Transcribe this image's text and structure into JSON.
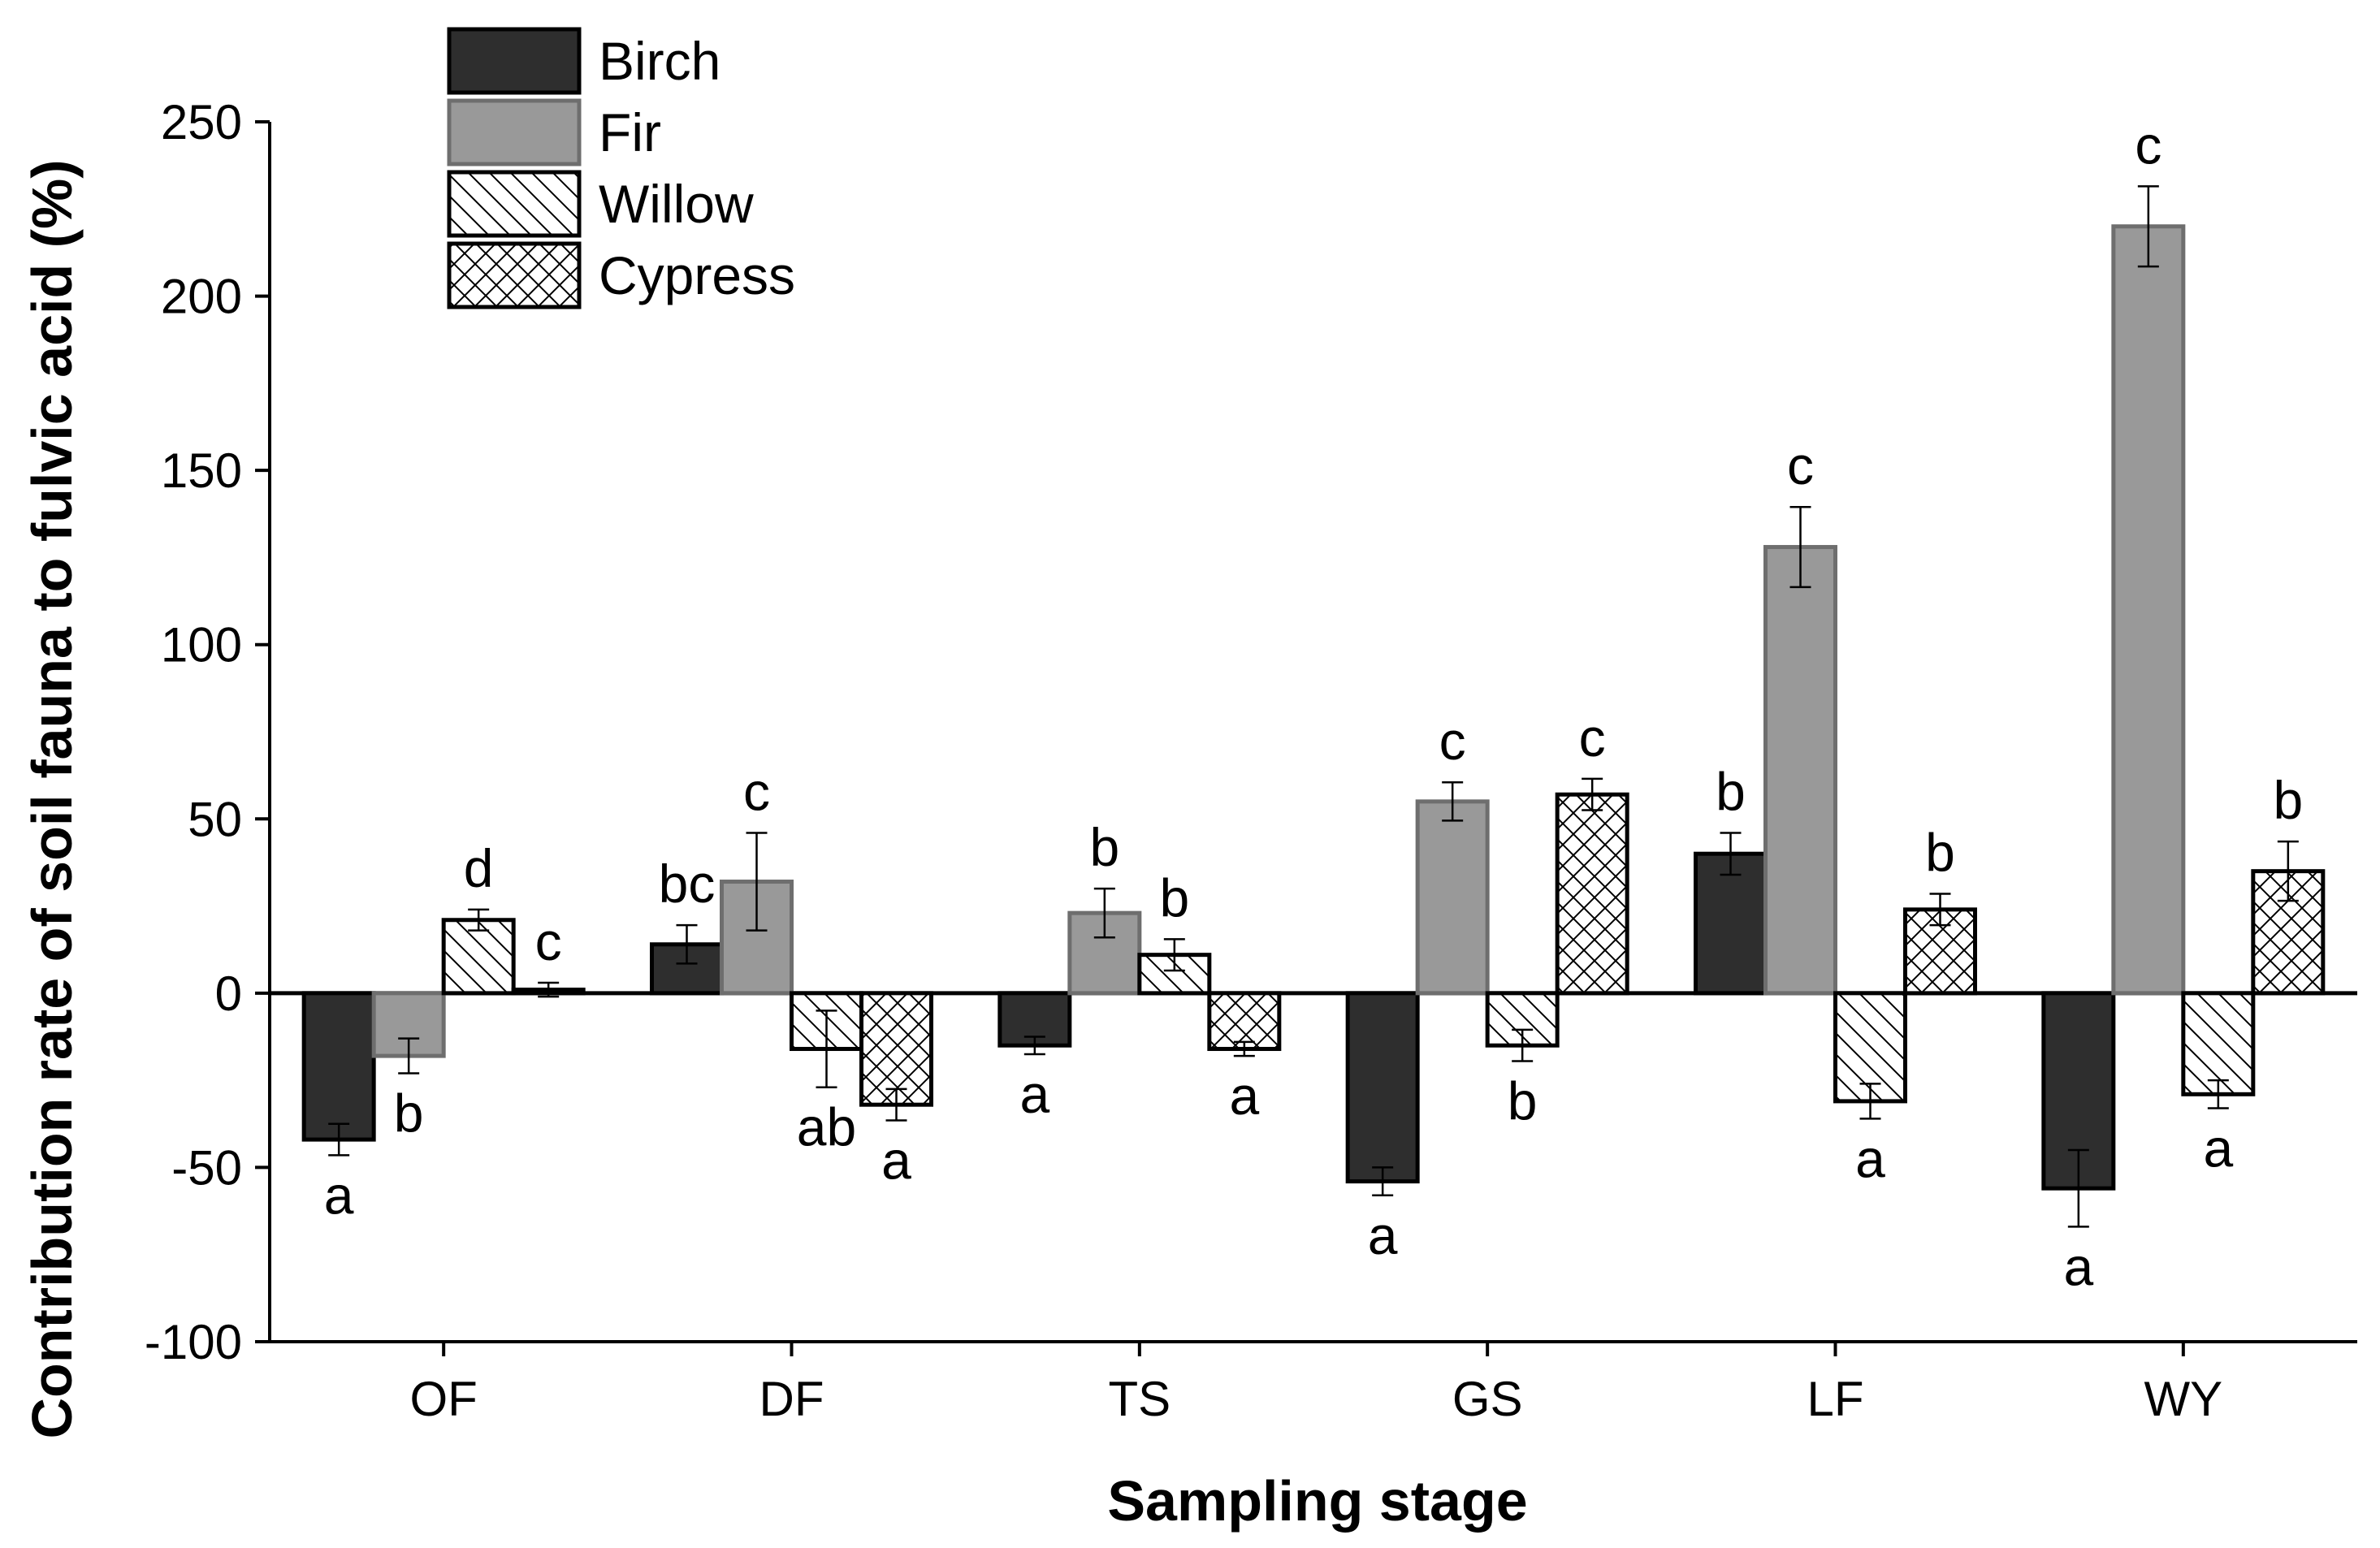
{
  "chart_data": {
    "type": "bar",
    "title": "",
    "xlabel": "Sampling stage",
    "ylabel": "Contribution rate of soil fauna to fulvic acid (%)",
    "ylim": [
      -100,
      250
    ],
    "yticks": [
      -100,
      -50,
      0,
      50,
      100,
      150,
      200,
      250
    ],
    "ytick_labels": [
      "-100",
      "-50",
      "0",
      "50",
      "100",
      "150",
      "200",
      "250"
    ],
    "categories": [
      "OF",
      "DF",
      "TS",
      "GS",
      "LF",
      "WY"
    ],
    "legend_position": "top-left",
    "colors": {
      "birch": "#2e2e2e",
      "fir": "#999999",
      "fir_edge": "#6e6e6e",
      "pattern_fill": "#ffffff",
      "ink": "#000000"
    },
    "series": [
      {
        "name": "Birch",
        "key": "birch",
        "fill": "solid-dark",
        "values": [
          -42,
          14,
          -15,
          -54,
          40,
          -56
        ],
        "errors": [
          4.5,
          5.5,
          2.5,
          4,
          6,
          11
        ],
        "letters": [
          "a",
          "bc",
          "a",
          "a",
          "b",
          "a"
        ]
      },
      {
        "name": "Fir",
        "key": "fir",
        "fill": "solid-gray",
        "values": [
          -18,
          32,
          23,
          55,
          128,
          220
        ],
        "errors": [
          5,
          14,
          7,
          5.5,
          11.5,
          11.5
        ],
        "letters": [
          "b",
          "c",
          "b",
          "c",
          "c",
          "c"
        ]
      },
      {
        "name": "Willow",
        "key": "willow",
        "fill": "diagonal-hatch",
        "values": [
          21,
          -16,
          11,
          -15,
          -31,
          -29
        ],
        "errors": [
          3,
          11,
          4.5,
          4.5,
          5,
          4
        ],
        "letters": [
          "d",
          "ab",
          "b",
          "b",
          "a",
          "a"
        ]
      },
      {
        "name": "Cypress",
        "key": "cypress",
        "fill": "cross-hatch",
        "values": [
          1,
          -32,
          -16,
          57,
          24,
          35
        ],
        "errors": [
          2,
          4.5,
          2,
          4.5,
          4.5,
          8.5
        ],
        "letters": [
          "c",
          "a",
          "a",
          "c",
          "b",
          "b"
        ]
      }
    ]
  }
}
